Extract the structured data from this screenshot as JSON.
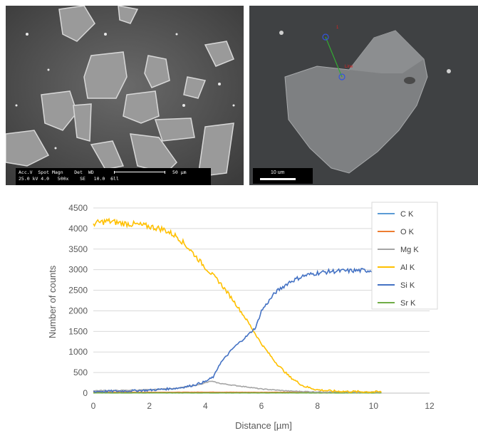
{
  "sem_left": {
    "info_line1": "Acc.V  Spot Magn    Det  WD",
    "info_line2": "25.0 kV 4.0   500x    SE   10.0  6ll",
    "scale_label": "50 µm"
  },
  "sem_right": {
    "scale_label": "10 um",
    "point1_label": "1",
    "line_label": "Line"
  },
  "chart_data": {
    "type": "line",
    "xlabel": "Distance [µm]",
    "ylabel": "Number of counts",
    "xlim": [
      0,
      12
    ],
    "ylim": [
      0,
      4500
    ],
    "xticks": [
      0,
      2,
      4,
      6,
      8,
      10,
      12
    ],
    "yticks": [
      0,
      500,
      1000,
      1500,
      2000,
      2500,
      3000,
      3500,
      4000,
      4500
    ],
    "grid": "horizontal",
    "legend_position": "right",
    "series": [
      {
        "name": "C  K",
        "color": "#5b9bd5",
        "x": [
          0,
          2,
          4,
          6,
          8,
          10,
          10.3
        ],
        "y": [
          10,
          10,
          12,
          10,
          10,
          10,
          10
        ]
      },
      {
        "name": "O  K",
        "color": "#ed7d31",
        "x": [
          0,
          2,
          4,
          6,
          8,
          10,
          10.3
        ],
        "y": [
          20,
          20,
          22,
          20,
          20,
          20,
          20
        ]
      },
      {
        "name": "Mg K",
        "color": "#a5a5a5",
        "x": [
          0,
          1,
          2,
          3,
          3.6,
          4.0,
          4.2,
          4.5,
          5.0,
          5.5,
          6.0,
          7.0,
          8.0,
          9.0,
          10.0,
          10.3
        ],
        "y": [
          60,
          65,
          80,
          120,
          180,
          250,
          290,
          240,
          190,
          150,
          100,
          50,
          30,
          25,
          25,
          25
        ]
      },
      {
        "name": "Al K",
        "color": "#ffc000",
        "x": [
          0,
          0.5,
          1.0,
          1.5,
          2.0,
          2.5,
          3.0,
          3.5,
          4.0,
          4.5,
          5.0,
          5.5,
          6.0,
          6.5,
          7.0,
          7.5,
          8.0,
          8.5,
          9.0,
          10.0,
          10.3
        ],
        "y": [
          4120,
          4180,
          4130,
          4100,
          4050,
          3980,
          3800,
          3450,
          3050,
          2700,
          2250,
          1750,
          1200,
          750,
          400,
          170,
          80,
          50,
          40,
          30,
          30
        ]
      },
      {
        "name": "Si K",
        "color": "#4472c4",
        "x": [
          0,
          1,
          2,
          3,
          3.5,
          4.0,
          4.3,
          4.5,
          5.0,
          5.5,
          5.8,
          6.0,
          6.5,
          7.0,
          7.5,
          8.0,
          8.5,
          9.0,
          9.5,
          10.0,
          10.3
        ],
        "y": [
          40,
          50,
          70,
          120,
          180,
          280,
          400,
          700,
          1100,
          1400,
          1600,
          2000,
          2450,
          2700,
          2850,
          2920,
          2960,
          2970,
          2980,
          2980,
          2960
        ]
      },
      {
        "name": "Sr K",
        "color": "#70ad47",
        "x": [
          0,
          2,
          4,
          6,
          8,
          10,
          10.3
        ],
        "y": [
          5,
          5,
          5,
          5,
          5,
          5,
          5
        ]
      }
    ]
  }
}
